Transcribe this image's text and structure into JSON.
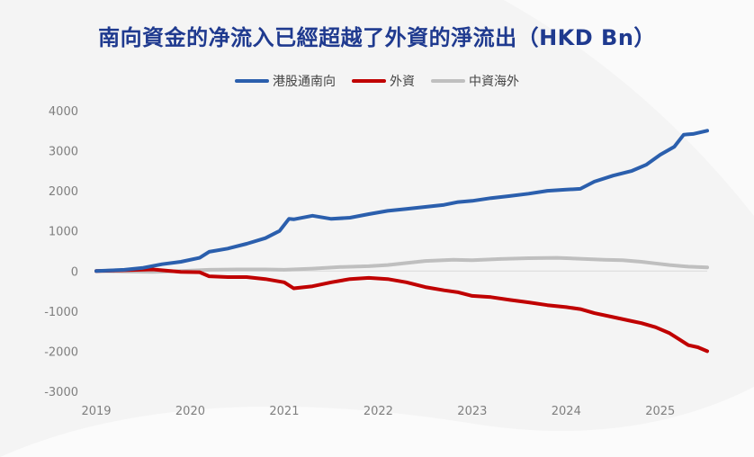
{
  "chart_data": {
    "type": "line",
    "title": "南向資金的净流入已經超越了外資的淨流出（HKD Bn）",
    "xlabel": "",
    "ylabel": "",
    "x_ticks": [
      "2019",
      "2020",
      "2021",
      "2022",
      "2023",
      "2024",
      "2025"
    ],
    "y_ticks": [
      4000,
      3000,
      2000,
      1000,
      0,
      -1000,
      -2000,
      -3000
    ],
    "xlim": [
      2019,
      2025.5
    ],
    "ylim": [
      -3000,
      4000
    ],
    "legend_position": "top-center",
    "series": [
      {
        "name": "港股通南向",
        "color": "#2b5fad",
        "x": [
          2019.0,
          2019.3,
          2019.5,
          2019.7,
          2019.9,
          2020.1,
          2020.2,
          2020.4,
          2020.6,
          2020.8,
          2020.95,
          2021.05,
          2021.1,
          2021.3,
          2021.5,
          2021.7,
          2021.9,
          2022.1,
          2022.3,
          2022.5,
          2022.7,
          2022.85,
          2023.0,
          2023.2,
          2023.4,
          2023.6,
          2023.8,
          2024.0,
          2024.15,
          2024.3,
          2024.5,
          2024.7,
          2024.85,
          2025.0,
          2025.15,
          2025.25,
          2025.35,
          2025.5
        ],
        "values": [
          0,
          30,
          80,
          170,
          230,
          330,
          480,
          560,
          680,
          820,
          1000,
          1300,
          1290,
          1380,
          1300,
          1330,
          1420,
          1500,
          1550,
          1600,
          1650,
          1720,
          1750,
          1820,
          1870,
          1930,
          2000,
          2030,
          2050,
          2230,
          2380,
          2500,
          2650,
          2900,
          3100,
          3400,
          3420,
          3500
        ]
      },
      {
        "name": "外資",
        "color": "#c00000",
        "x": [
          2019.0,
          2019.3,
          2019.6,
          2019.9,
          2020.1,
          2020.2,
          2020.4,
          2020.6,
          2020.8,
          2021.0,
          2021.1,
          2021.3,
          2021.5,
          2021.7,
          2021.9,
          2022.1,
          2022.3,
          2022.5,
          2022.7,
          2022.85,
          2023.0,
          2023.2,
          2023.4,
          2023.6,
          2023.8,
          2024.0,
          2024.15,
          2024.3,
          2024.5,
          2024.7,
          2024.8,
          2024.95,
          2025.1,
          2025.2,
          2025.3,
          2025.4,
          2025.5
        ],
        "values": [
          0,
          20,
          40,
          -20,
          -30,
          -130,
          -150,
          -150,
          -200,
          -280,
          -430,
          -380,
          -280,
          -200,
          -170,
          -200,
          -280,
          -400,
          -480,
          -530,
          -620,
          -650,
          -720,
          -780,
          -850,
          -900,
          -950,
          -1050,
          -1150,
          -1250,
          -1300,
          -1400,
          -1550,
          -1700,
          -1850,
          -1900,
          -2000
        ]
      },
      {
        "name": "中資海外",
        "color": "#bfbfbf",
        "x": [
          2019.0,
          2019.3,
          2019.6,
          2019.9,
          2020.2,
          2020.5,
          2020.8,
          2021.0,
          2021.3,
          2021.6,
          2021.9,
          2022.1,
          2022.3,
          2022.5,
          2022.8,
          2023.0,
          2023.3,
          2023.6,
          2023.9,
          2024.0,
          2024.2,
          2024.4,
          2024.6,
          2024.8,
          2024.95,
          2025.1,
          2025.3,
          2025.5
        ],
        "values": [
          0,
          -10,
          -20,
          0,
          30,
          40,
          40,
          30,
          60,
          100,
          120,
          150,
          200,
          250,
          280,
          270,
          300,
          320,
          330,
          320,
          300,
          280,
          270,
          230,
          190,
          150,
          110,
          90
        ]
      }
    ]
  }
}
